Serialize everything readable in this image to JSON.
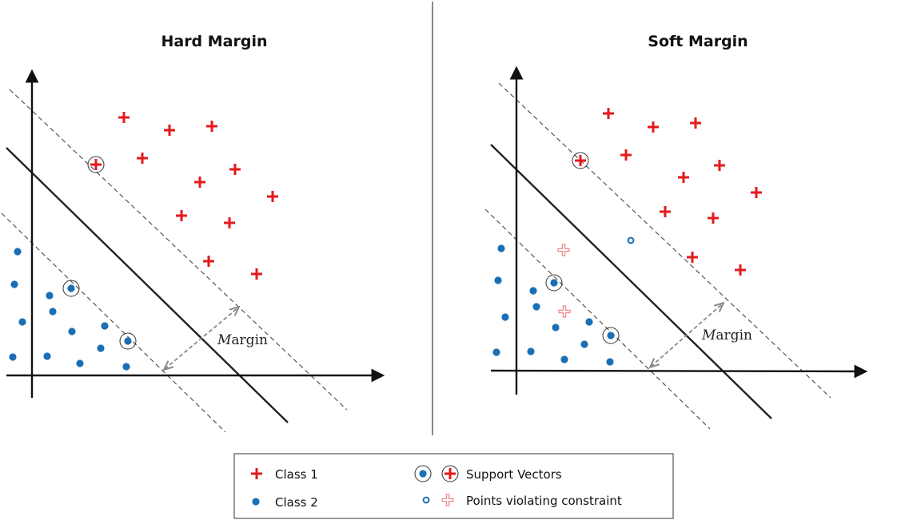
{
  "colors": {
    "class1": "#e31a1c",
    "class1_violating": "#f08a8a",
    "class2": "#1a6fb5",
    "axis": "#111111",
    "hyperplane": "#222222",
    "margin_dashed": "#555555",
    "margin_arrow": "#8a8a8a",
    "divider": "#888888"
  },
  "panels": [
    {
      "id": "hard",
      "title": "Hard Margin",
      "margin_label": {
        "italic": "M",
        "rest": "argin"
      },
      "class1_points": [
        [
          155,
          147
        ],
        [
          212,
          163
        ],
        [
          265,
          158
        ],
        [
          178,
          198
        ],
        [
          120,
          206
        ],
        [
          294,
          212
        ],
        [
          250,
          228
        ],
        [
          341,
          246
        ],
        [
          227,
          270
        ],
        [
          287,
          279
        ],
        [
          261,
          327
        ],
        [
          321,
          343
        ]
      ],
      "class2_points": [
        [
          22,
          315
        ],
        [
          18,
          356
        ],
        [
          62,
          370
        ],
        [
          89,
          361
        ],
        [
          66,
          390
        ],
        [
          28,
          403
        ],
        [
          90,
          415
        ],
        [
          131,
          408
        ],
        [
          160,
          427
        ],
        [
          126,
          436
        ],
        [
          16,
          447
        ],
        [
          59,
          446
        ],
        [
          100,
          455
        ],
        [
          158,
          459
        ]
      ],
      "support_vectors_class1": [
        [
          120,
          206
        ]
      ],
      "support_vectors_class2": [
        [
          89,
          361
        ],
        [
          160,
          427
        ]
      ],
      "violating_class1": [],
      "violating_class2": []
    },
    {
      "id": "soft",
      "title": "Soft Margin",
      "margin_label": {
        "italic": "M",
        "rest": "argin"
      },
      "class1_points": [
        [
          761,
          142
        ],
        [
          817,
          159
        ],
        [
          870,
          154
        ],
        [
          783,
          194
        ],
        [
          726,
          201
        ],
        [
          900,
          207
        ],
        [
          855,
          222
        ],
        [
          946,
          241
        ],
        [
          832,
          265
        ],
        [
          892,
          273
        ],
        [
          866,
          322
        ],
        [
          926,
          338
        ]
      ],
      "class2_points": [
        [
          627,
          311
        ],
        [
          623,
          351
        ],
        [
          667,
          364
        ],
        [
          693,
          354
        ],
        [
          671,
          384
        ],
        [
          632,
          397
        ],
        [
          695,
          410
        ],
        [
          737,
          403
        ],
        [
          764,
          420
        ],
        [
          731,
          431
        ],
        [
          621,
          441
        ],
        [
          664,
          440
        ],
        [
          706,
          450
        ],
        [
          763,
          453
        ]
      ],
      "support_vectors_class1": [
        [
          726,
          201
        ]
      ],
      "support_vectors_class2": [
        [
          693,
          354
        ],
        [
          764,
          420
        ]
      ],
      "violating_class1": [
        [
          705,
          313
        ],
        [
          706,
          390
        ]
      ],
      "violating_class2": [
        [
          789,
          301
        ]
      ]
    }
  ],
  "legend": {
    "class1_label": "Class 1",
    "class2_label": "Class 2",
    "support_vectors_label": "Support Vectors",
    "violating_label": "Points violating constraint"
  }
}
